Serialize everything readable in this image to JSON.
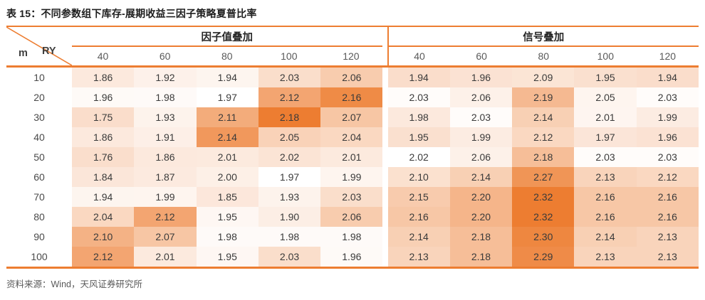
{
  "title": "表 15：不同参数组下库存-展期收益三因子策略夏普比率",
  "source": "资料来源：Wind，天风证券研究所",
  "colors": {
    "accent": "#ED7D31",
    "heat_low": "#FADDCB",
    "heat_mid": "#FFFFFF",
    "heat_high": "#ED7D31",
    "title_text": "#1D1D1D",
    "header_num_text": "#595959",
    "cell_text": "#3A3A3A"
  },
  "table": {
    "corner": {
      "row_axis": "m",
      "col_axis": "RY"
    },
    "groups": [
      {
        "label": "因子值叠加",
        "columns": [
          "40",
          "60",
          "80",
          "100",
          "120"
        ],
        "scale": {
          "min": 1.75,
          "mid": 1.97,
          "max": 2.18
        }
      },
      {
        "label": "信号叠加",
        "columns": [
          "40",
          "60",
          "80",
          "100",
          "120"
        ],
        "scale": {
          "min": 1.94,
          "mid": 2.02,
          "max": 2.32
        }
      }
    ],
    "rows": [
      {
        "label": "10",
        "factor": [
          "1.86",
          "1.92",
          "1.94",
          "2.03",
          "2.06"
        ],
        "signal": [
          "1.94",
          "1.96",
          "2.09",
          "1.95",
          "1.94"
        ]
      },
      {
        "label": "20",
        "factor": [
          "1.96",
          "1.98",
          "1.97",
          "2.12",
          "2.16"
        ],
        "signal": [
          "2.03",
          "2.06",
          "2.19",
          "2.05",
          "2.03"
        ]
      },
      {
        "label": "30",
        "factor": [
          "1.75",
          "1.93",
          "2.11",
          "2.18",
          "2.07"
        ],
        "signal": [
          "1.98",
          "2.03",
          "2.14",
          "2.01",
          "1.99"
        ]
      },
      {
        "label": "40",
        "factor": [
          "1.86",
          "1.91",
          "2.14",
          "2.05",
          "2.04"
        ],
        "signal": [
          "1.95",
          "1.99",
          "2.12",
          "1.97",
          "1.96"
        ]
      },
      {
        "label": "50",
        "factor": [
          "1.76",
          "1.86",
          "2.01",
          "2.02",
          "2.01"
        ],
        "signal": [
          "2.02",
          "2.06",
          "2.18",
          "2.03",
          "2.03"
        ]
      },
      {
        "label": "60",
        "factor": [
          "1.84",
          "1.87",
          "2.00",
          "1.97",
          "1.99"
        ],
        "signal": [
          "2.10",
          "2.14",
          "2.27",
          "2.13",
          "2.12"
        ]
      },
      {
        "label": "70",
        "factor": [
          "1.94",
          "1.99",
          "1.85",
          "1.93",
          "2.03"
        ],
        "signal": [
          "2.15",
          "2.20",
          "2.32",
          "2.16",
          "2.16"
        ]
      },
      {
        "label": "80",
        "factor": [
          "2.04",
          "2.12",
          "1.95",
          "1.90",
          "2.06"
        ],
        "signal": [
          "2.16",
          "2.20",
          "2.32",
          "2.16",
          "2.16"
        ]
      },
      {
        "label": "90",
        "factor": [
          "2.10",
          "2.07",
          "1.98",
          "1.98",
          "1.98"
        ],
        "signal": [
          "2.14",
          "2.18",
          "2.30",
          "2.14",
          "2.13"
        ]
      },
      {
        "label": "100",
        "factor": [
          "2.12",
          "2.01",
          "1.95",
          "2.03",
          "1.96"
        ],
        "signal": [
          "2.13",
          "2.18",
          "2.29",
          "2.13",
          "2.13"
        ]
      }
    ]
  }
}
